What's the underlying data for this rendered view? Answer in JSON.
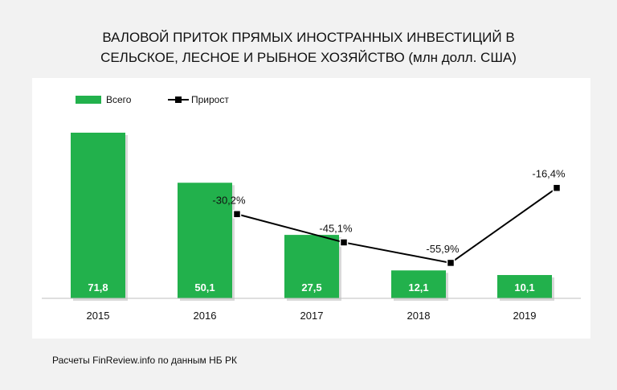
{
  "title_line1": "ВАЛОВОЙ ПРИТОК ПРЯМЫХ ИНОСТРАННЫХ ИНВЕСТИЦИЙ В",
  "title_line2": "СЕЛЬСКОЕ, ЛЕСНОЕ И РЫБНОЕ ХОЗЯЙСТВО (млн долл. США)",
  "source": "Расчеты FinReview.info по данным НБ РК",
  "colors": {
    "bar": "#22b14c",
    "line": "#000000",
    "background": "#f2f2f2",
    "panel": "#ffffff"
  },
  "chart_data": {
    "type": "bar",
    "categories": [
      "2015",
      "2016",
      "2017",
      "2018",
      "2019"
    ],
    "series": [
      {
        "name": "Всего",
        "type": "bar",
        "values": [
          71.8,
          50.1,
          27.5,
          12.1,
          10.1
        ],
        "labels": [
          "71,8",
          "50,1",
          "27,5",
          "12,1",
          "10,1"
        ]
      },
      {
        "name": "Прирост",
        "type": "line",
        "values": [
          null,
          -30.2,
          -45.1,
          -55.9,
          -16.4
        ],
        "labels": [
          "",
          "-30,2%",
          "-45,1%",
          "-55,9%",
          "-16,4%"
        ]
      }
    ],
    "legend": "top-left",
    "grid": false
  }
}
